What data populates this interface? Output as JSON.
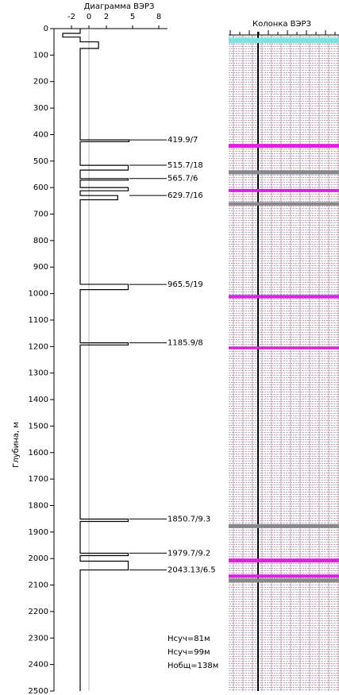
{
  "chart_data": {
    "type": "step-log",
    "title": "Диаграмма ВЭРЗ",
    "column_title": "Колонка ВЭРЗ",
    "ylabel": "Глубина, м",
    "ylim": [
      0,
      2500
    ],
    "yticks": [
      0,
      100,
      200,
      300,
      400,
      500,
      600,
      700,
      800,
      900,
      1000,
      1100,
      1200,
      1300,
      1400,
      1500,
      1600,
      1700,
      1800,
      1900,
      2000,
      2100,
      2200,
      2300,
      2400,
      2500
    ],
    "xlim": [
      -4,
      9
    ],
    "xticks": [
      -2,
      0,
      2,
      5,
      8
    ],
    "zero_line": true,
    "color": "#000000",
    "depth": [
      0,
      18,
      18,
      32,
      32,
      50,
      50,
      75,
      75,
      420,
      420,
      427,
      427,
      516,
      516,
      534,
      534,
      566,
      566,
      572,
      572,
      600,
      600,
      612,
      612,
      630,
      630,
      646,
      646,
      965,
      965,
      985,
      985,
      1186,
      1186,
      1194,
      1194,
      1851,
      1851,
      1860,
      1860,
      1980,
      1980,
      1989,
      1989,
      2010,
      2010,
      2043,
      2043,
      2050,
      2050,
      2500
    ],
    "values": [
      -1,
      -1,
      -3,
      -3,
      -1,
      -1,
      1.1,
      1.1,
      -1,
      -1,
      4.6,
      4.6,
      -1,
      -1,
      4.5,
      4.5,
      -1,
      -1,
      4.5,
      4.5,
      -1,
      -1,
      4.5,
      4.5,
      -1,
      -1,
      3.3,
      3.3,
      -1,
      -1,
      4.5,
      4.5,
      -1,
      -1,
      4.5,
      4.5,
      -1,
      -1,
      4.5,
      4.5,
      -1,
      -1,
      4.5,
      4.5,
      -1,
      -1,
      4.5,
      4.5,
      -1,
      -1,
      -1,
      -1
    ],
    "annotations": [
      {
        "depth": 419.9,
        "label": "419.9/7"
      },
      {
        "depth": 515.7,
        "label": "515.7/18"
      },
      {
        "depth": 565.7,
        "label": "565.7/6"
      },
      {
        "depth": 629.7,
        "label": "629.7/16"
      },
      {
        "depth": 965.5,
        "label": "965.5/19"
      },
      {
        "depth": 1185.9,
        "label": "1185.9/8"
      },
      {
        "depth": 1850.7,
        "label": "1850.7/9.3"
      },
      {
        "depth": 1979.7,
        "label": "1979.7/9.2"
      },
      {
        "depth": 2043.13,
        "label": "2043.13/6.5"
      }
    ],
    "annotation_color": "#2233cc",
    "layers": [
      {
        "top": 35,
        "bottom": 55,
        "color": "#7fe0e0"
      },
      {
        "top": 435,
        "bottom": 450,
        "color": "#e020e0"
      },
      {
        "top": 535,
        "bottom": 550,
        "color": "#888888"
      },
      {
        "top": 605,
        "bottom": 617,
        "color": "#e020e0"
      },
      {
        "top": 655,
        "bottom": 668,
        "color": "#888888"
      },
      {
        "top": 1005,
        "bottom": 1018,
        "color": "#e020e0"
      },
      {
        "top": 1200,
        "bottom": 1210,
        "color": "#e020e0"
      },
      {
        "top": 1870,
        "bottom": 1885,
        "color": "#888888"
      },
      {
        "top": 2000,
        "bottom": 2015,
        "color": "#e020e0"
      },
      {
        "top": 2060,
        "bottom": 2072,
        "color": "#e020e0"
      },
      {
        "top": 2075,
        "bottom": 2090,
        "color": "#888888"
      }
    ],
    "notes": [
      {
        "text": "Нсуч=81м",
        "color": "#000000"
      },
      {
        "text": "Нсуч=99м",
        "color": "#e020e0"
      },
      {
        "text": "Нобщ=138м",
        "color": "#000000"
      }
    ]
  }
}
